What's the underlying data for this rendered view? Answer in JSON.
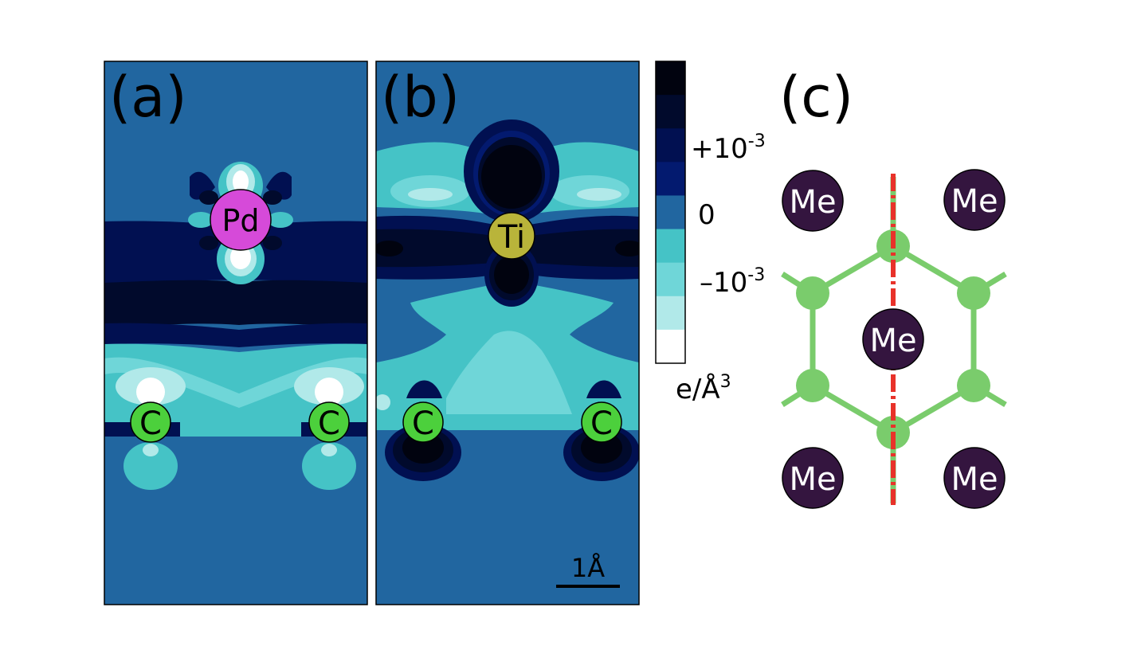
{
  "panels": [
    {
      "label": "(a)",
      "atoms": [
        {
          "symbol": "Pd"
        },
        {
          "symbol": "C"
        },
        {
          "symbol": "C"
        }
      ]
    },
    {
      "label": "(b)",
      "atoms": [
        {
          "symbol": "Ti"
        },
        {
          "symbol": "C"
        },
        {
          "symbol": "C"
        }
      ],
      "scale_bar": "1Å"
    },
    {
      "label": "(c)",
      "metal_label": "Me"
    }
  ],
  "colorbar": {
    "tick_plus_base": "+10",
    "tick_plus_exp": "-3",
    "tick_zero": "0",
    "tick_minus_base": "–10",
    "tick_minus_exp": "-3",
    "unit_main": "e/Å",
    "unit_exp": "3",
    "levels": [
      "#01030f",
      "#010a2c",
      "#011051",
      "#031a6f",
      "#2166a0",
      "#45c3c6",
      "#6fd6d8",
      "#b1e9e9",
      "#ffffff"
    ]
  },
  "colors": {
    "background": "#2166a0",
    "pd": "#d64ad9",
    "ti": "#b9b43a",
    "carbon": "#4cd03c",
    "metal_c": "#34153f",
    "graphene": "#7acc6c",
    "cut_line": "#e8322a"
  }
}
